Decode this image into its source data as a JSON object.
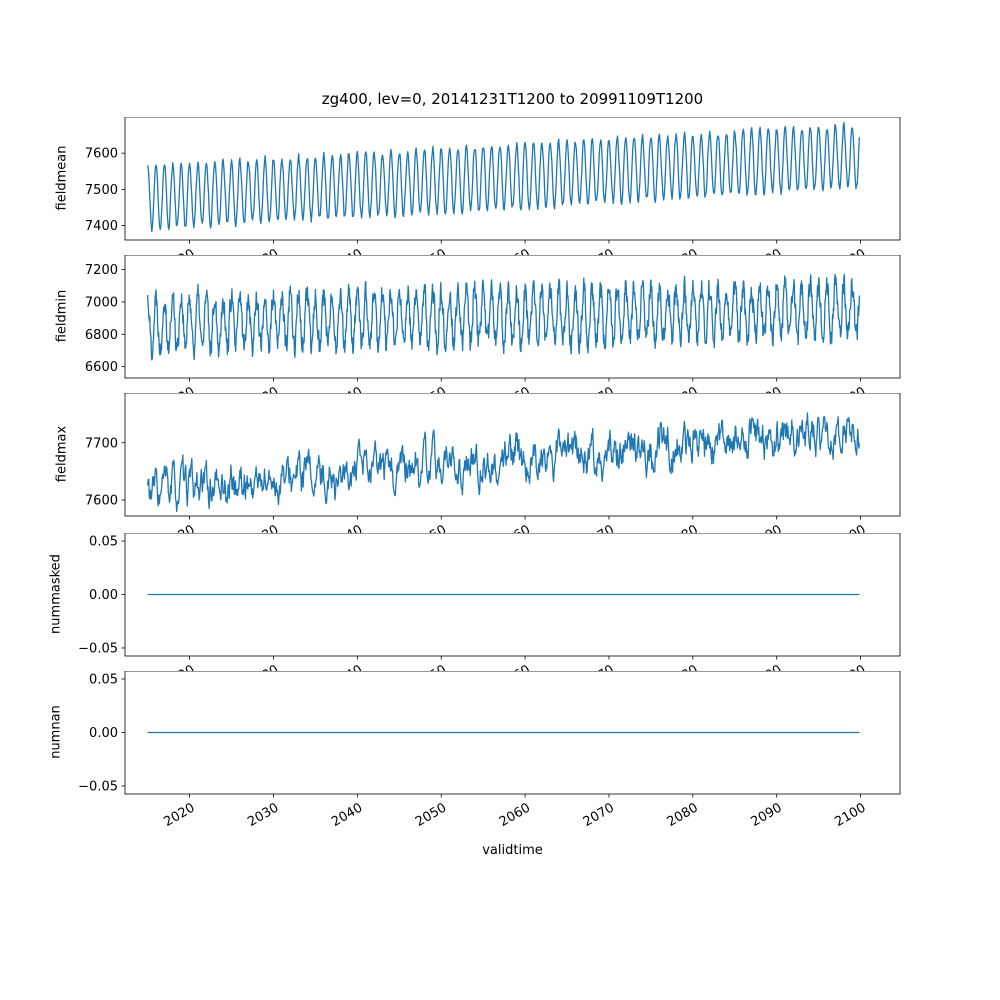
{
  "figure": {
    "title": "zg400, lev=0, 20141231T1200 to 20991109T1200",
    "xlabel": "validtime",
    "line_color": "#1f77b4",
    "xlim": [
      2012.3,
      2104.7
    ],
    "xticks": [
      2020,
      2030,
      2040,
      2050,
      2060,
      2070,
      2080,
      2090,
      2100
    ],
    "xtick_labels": [
      "2020",
      "2030",
      "2040",
      "2050",
      "2060",
      "2070",
      "2080",
      "2090",
      "2100"
    ]
  },
  "chart_data": [
    {
      "type": "line",
      "ylabel": "fieldmean",
      "ytick_values": [
        7400,
        7500,
        7600
      ],
      "ytick_labels": [
        "7400",
        "7500",
        "7600"
      ],
      "ylim": [
        7360,
        7700
      ],
      "x_range": [
        2015.0,
        2099.86
      ],
      "observed_range": [
        7380,
        7680
      ],
      "series": {
        "name": "fieldmean",
        "pattern": "annual-cycle-with-upward-trend",
        "samples_per_year": 12,
        "trend": [
          7478,
          7592
        ],
        "seasonal_amplitude": 88,
        "noise": 9,
        "ar": 0.15,
        "phase": 0,
        "seed": 11,
        "clamp": [
          7368,
          7692
        ]
      }
    },
    {
      "type": "line",
      "ylabel": "fieldmin",
      "ytick_values": [
        6600,
        6800,
        7000,
        7200
      ],
      "ytick_labels": [
        "6600",
        "6800",
        "7000",
        "7200"
      ],
      "ylim": [
        6530,
        7290
      ],
      "x_range": [
        2015.0,
        2099.86
      ],
      "observed_range": [
        6570,
        7240
      ],
      "series": {
        "name": "fieldmin",
        "pattern": "noisy-annual-cycle-slight-trend",
        "samples_per_year": 20,
        "trend": [
          6868,
          6952
        ],
        "seasonal_amplitude": 158,
        "noise": 68,
        "ar": 0.3,
        "phase": 0,
        "seed": 22,
        "clamp": [
          6550,
          7260
        ]
      }
    },
    {
      "type": "line",
      "ylabel": "fieldmax",
      "ytick_values": [
        7600,
        7700
      ],
      "ytick_labels": [
        "7600",
        "7700"
      ],
      "ylim": [
        7572,
        7787
      ],
      "x_range": [
        2015.0,
        2099.86
      ],
      "observed_range": [
        7595,
        7765
      ],
      "series": {
        "name": "fieldmax",
        "pattern": "noisy-rising-trend",
        "samples_per_year": 15,
        "trend": [
          7614,
          7722
        ],
        "seasonal_amplitude": 9,
        "noise": 24,
        "ar": 0.75,
        "phase": 0,
        "seed": 33,
        "clamp": [
          7580,
          7778
        ]
      }
    },
    {
      "type": "line",
      "ylabel": "nummasked",
      "ytick_values": [
        -0.05,
        0.0,
        0.05
      ],
      "ytick_labels": [
        "−0.05",
        "0.00",
        "0.05"
      ],
      "ylim": [
        -0.0575,
        0.0575
      ],
      "x_range": [
        2015.0,
        2099.86
      ],
      "observed_range": [
        0,
        0
      ],
      "series": {
        "name": "nummasked",
        "pattern": "constant-zero",
        "samples_per_year": 4,
        "trend": [
          0,
          0
        ],
        "seasonal_amplitude": 0,
        "noise": 0,
        "ar": 0,
        "phase": 0,
        "seed": 1,
        "clamp": [
          -0.05,
          0.05
        ]
      }
    },
    {
      "type": "line",
      "ylabel": "numnan",
      "ytick_values": [
        -0.05,
        0.0,
        0.05
      ],
      "ytick_labels": [
        "−0.05",
        "0.00",
        "0.05"
      ],
      "ylim": [
        -0.0575,
        0.0575
      ],
      "x_range": [
        2015.0,
        2099.86
      ],
      "observed_range": [
        0,
        0
      ],
      "series": {
        "name": "numnan",
        "pattern": "constant-zero",
        "samples_per_year": 4,
        "trend": [
          0,
          0
        ],
        "seasonal_amplitude": 0,
        "noise": 0,
        "ar": 0,
        "phase": 0,
        "seed": 2,
        "clamp": [
          -0.05,
          0.05
        ]
      }
    }
  ]
}
